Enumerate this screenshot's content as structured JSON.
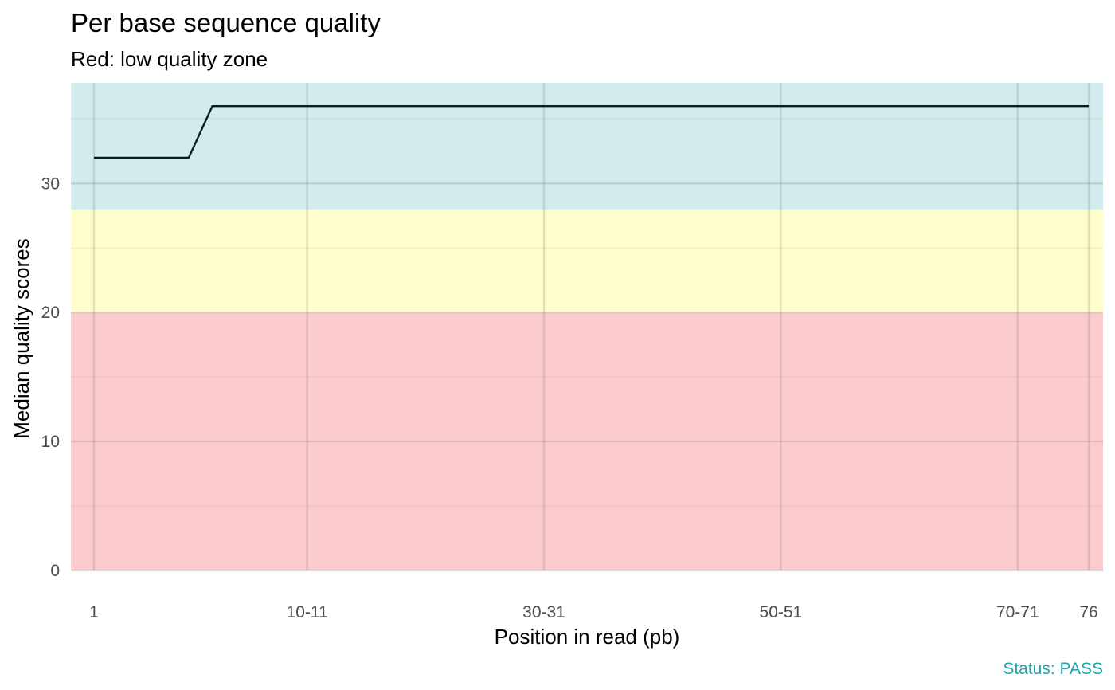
{
  "chart_data": {
    "type": "line",
    "title": "Per base sequence quality",
    "subtitle": "Red: low quality zone",
    "xlabel": "Position in read (pb)",
    "ylabel": "Median quality scores",
    "caption": "Status: PASS",
    "x_tick_labels": [
      "1",
      "10-11",
      "30-31",
      "50-51",
      "70-71",
      "76"
    ],
    "y_ticks": [
      0,
      10,
      20,
      30
    ],
    "ylim": [
      0,
      37.8
    ],
    "grid": true,
    "zones": [
      {
        "from": 0,
        "to": 20,
        "color": "#fccbcd"
      },
      {
        "from": 20,
        "to": 28,
        "color": "#fefecc"
      },
      {
        "from": 28,
        "to": 37.8,
        "color": "#d1ebee"
      }
    ],
    "series": [
      {
        "color": "#0b1d1f",
        "points": [
          {
            "x": "1",
            "y": 32
          },
          {
            "x": "2",
            "y": 32
          },
          {
            "x": "3",
            "y": 32
          },
          {
            "x": "4",
            "y": 32
          },
          {
            "x": "5",
            "y": 32
          },
          {
            "x": "6",
            "y": 36
          },
          {
            "x": "7",
            "y": 36
          },
          {
            "x": "8",
            "y": 36
          },
          {
            "x": "9",
            "y": 36
          },
          {
            "x": "10-11",
            "y": 36
          },
          {
            "x": "12-13",
            "y": 36
          },
          {
            "x": "14-15",
            "y": 36
          },
          {
            "x": "16-17",
            "y": 36
          },
          {
            "x": "18-19",
            "y": 36
          },
          {
            "x": "20-21",
            "y": 36
          },
          {
            "x": "22-23",
            "y": 36
          },
          {
            "x": "24-25",
            "y": 36
          },
          {
            "x": "26-27",
            "y": 36
          },
          {
            "x": "28-29",
            "y": 36
          },
          {
            "x": "30-31",
            "y": 36
          },
          {
            "x": "32-33",
            "y": 36
          },
          {
            "x": "34-35",
            "y": 36
          },
          {
            "x": "36-37",
            "y": 36
          },
          {
            "x": "38-39",
            "y": 36
          },
          {
            "x": "40-41",
            "y": 36
          },
          {
            "x": "42-43",
            "y": 36
          },
          {
            "x": "44-45",
            "y": 36
          },
          {
            "x": "46-47",
            "y": 36
          },
          {
            "x": "48-49",
            "y": 36
          },
          {
            "x": "50-51",
            "y": 36
          },
          {
            "x": "52-53",
            "y": 36
          },
          {
            "x": "54-55",
            "y": 36
          },
          {
            "x": "56-57",
            "y": 36
          },
          {
            "x": "58-59",
            "y": 36
          },
          {
            "x": "60-61",
            "y": 36
          },
          {
            "x": "62-63",
            "y": 36
          },
          {
            "x": "64-65",
            "y": 36
          },
          {
            "x": "66-67",
            "y": 36
          },
          {
            "x": "68-69",
            "y": 36
          },
          {
            "x": "70-71",
            "y": 36
          },
          {
            "x": "72-73",
            "y": 36
          },
          {
            "x": "74-75",
            "y": 36
          },
          {
            "x": "76",
            "y": 36
          }
        ]
      }
    ],
    "caption_color": "#20a4ab"
  }
}
